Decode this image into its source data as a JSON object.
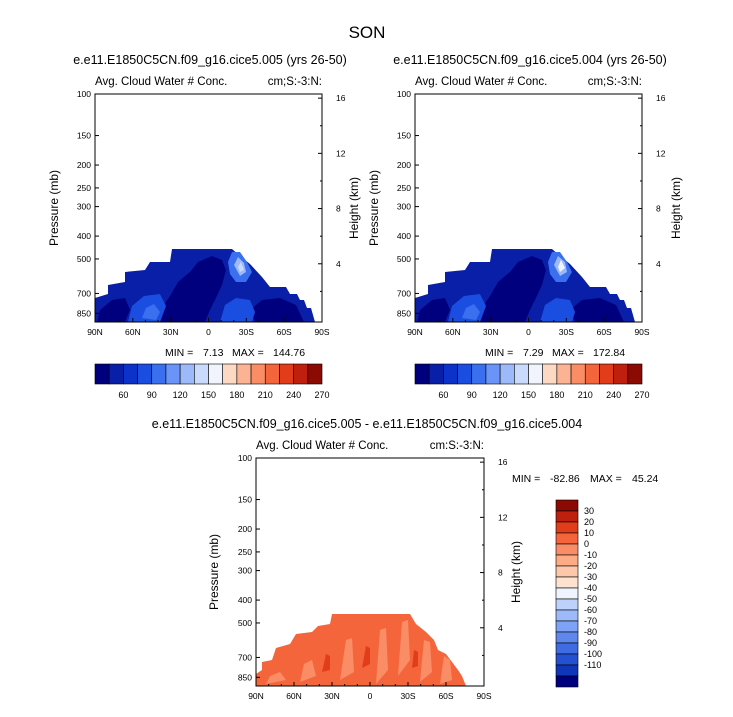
{
  "page_title": "SON",
  "chart_data": [
    {
      "id": "p1",
      "type": "heatmap",
      "title": "e.e11.E1850C5CN.f09_g16.cice5.005 (yrs 26-50)",
      "left_header": "Avg. Cloud Water # Conc.",
      "right_header": "cm;S:-3:N:",
      "xlabel": "",
      "ylabel": "Pressure (mb)",
      "y2label": "Height (km)",
      "x_ticks": [
        "90N",
        "60N",
        "30N",
        "0",
        "30S",
        "60S",
        "90S"
      ],
      "x_range": [
        90,
        -90
      ],
      "y_ticks": [
        100,
        150,
        200,
        250,
        300,
        400,
        500,
        700,
        850
      ],
      "y_range": [
        100,
        925
      ],
      "y_scale": "log",
      "y2_ticks": [
        4,
        8,
        12,
        16
      ],
      "min_label": "MIN =",
      "min_value": "7.13",
      "max_label": "MAX =",
      "max_value": "144.76",
      "colorbar_levels": [
        60,
        90,
        120,
        150,
        180,
        210,
        240,
        270
      ],
      "colorbar_colors": [
        "#00007f",
        "#0a1fa8",
        "#0b32c9",
        "#1a4ee0",
        "#3a6ff0",
        "#6a94f7",
        "#9cb9fa",
        "#c9dafc",
        "#f1f4fd",
        "#fdd8c2",
        "#fcb394",
        "#fa8c66",
        "#f4653c",
        "#e23d1a",
        "#bf1f0d",
        "#8c0a04"
      ],
      "colorbar_orientation": "horizontal",
      "grid": false
    },
    {
      "id": "p2",
      "type": "heatmap",
      "title": "e.e11.E1850C5CN.f09_g16.cice5.004 (yrs 26-50)",
      "left_header": "Avg. Cloud Water # Conc.",
      "right_header": "cm;S:-3:N:",
      "xlabel": "",
      "ylabel": "Pressure (mb)",
      "y2label": "Height (km)",
      "x_ticks": [
        "90N",
        "60N",
        "30N",
        "0",
        "30S",
        "60S",
        "90S"
      ],
      "x_range": [
        90,
        -90
      ],
      "y_ticks": [
        100,
        150,
        200,
        250,
        300,
        400,
        500,
        700,
        850
      ],
      "y_range": [
        100,
        925
      ],
      "y_scale": "log",
      "y2_ticks": [
        4,
        8,
        12,
        16
      ],
      "min_label": "MIN =",
      "min_value": "7.29",
      "max_label": "MAX =",
      "max_value": "172.84",
      "colorbar_levels": [
        60,
        90,
        120,
        150,
        180,
        210,
        240,
        270
      ],
      "colorbar_colors": [
        "#00007f",
        "#0a1fa8",
        "#0b32c9",
        "#1a4ee0",
        "#3a6ff0",
        "#6a94f7",
        "#9cb9fa",
        "#c9dafc",
        "#f1f4fd",
        "#fdd8c2",
        "#fcb394",
        "#fa8c66",
        "#f4653c",
        "#e23d1a",
        "#bf1f0d",
        "#8c0a04"
      ],
      "colorbar_orientation": "horizontal",
      "grid": false
    },
    {
      "id": "p3",
      "type": "heatmap",
      "title": "e.e11.E1850C5CN.f09_g16.cice5.005 - e.e11.E1850C5CN.f09_g16.cice5.004",
      "left_header": "Avg. Cloud Water # Conc.",
      "right_header": "cm:S:-3:N:",
      "xlabel": "",
      "ylabel": "Pressure (mb)",
      "y2label": "Height (km)",
      "x_ticks": [
        "90N",
        "60N",
        "30N",
        "0",
        "30S",
        "60S",
        "90S"
      ],
      "x_range": [
        90,
        -90
      ],
      "y_ticks": [
        100,
        150,
        200,
        250,
        300,
        400,
        500,
        700,
        850
      ],
      "y_range": [
        100,
        925
      ],
      "y_scale": "log",
      "y2_ticks": [
        4,
        8,
        12,
        16
      ],
      "min_label": "MIN =",
      "min_value": "-82.86",
      "max_label": "MAX =",
      "max_value": "45.24",
      "colorbar_levels": [
        30,
        20,
        10,
        0,
        -10,
        -20,
        -30,
        -40,
        -50,
        -60,
        -70,
        -80,
        -90,
        -100,
        -110
      ],
      "colorbar_colors": [
        "#8c0a04",
        "#bf1f0d",
        "#e23d1a",
        "#f4653c",
        "#fa8c66",
        "#fcab85",
        "#fdc8aa",
        "#fde2d2",
        "#eef3fd",
        "#bcd2fb",
        "#9cb9fa",
        "#7ea2f5",
        "#5f88ee",
        "#3f6be3",
        "#2450d2",
        "#0f35b8",
        "#00007f"
      ],
      "colorbar_orientation": "vertical",
      "grid": false
    }
  ]
}
